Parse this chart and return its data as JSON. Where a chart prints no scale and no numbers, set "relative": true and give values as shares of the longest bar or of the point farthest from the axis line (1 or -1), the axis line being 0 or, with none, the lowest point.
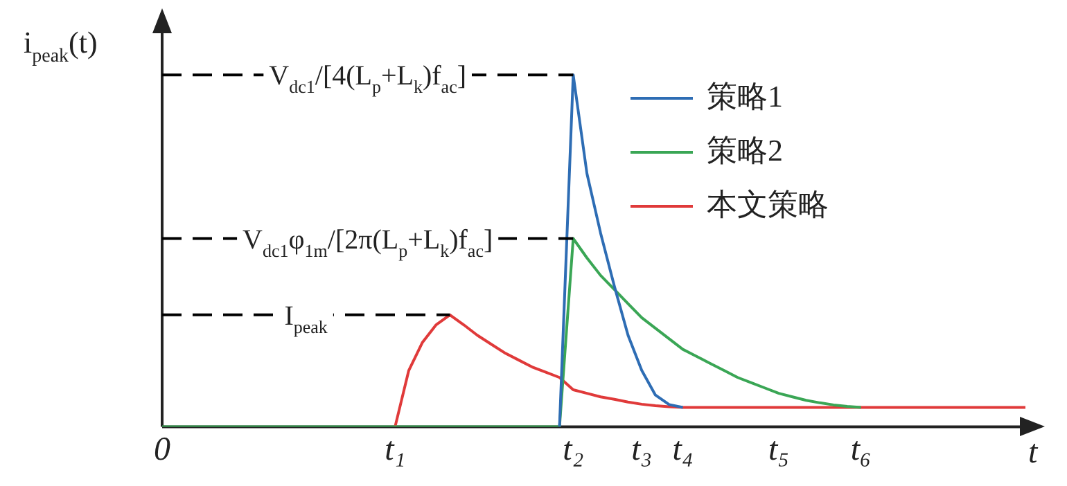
{
  "chart_data": {
    "type": "line",
    "relative": true,
    "xlabel": "t",
    "ylabel": "i$_{peak}$(t)",
    "categories": [
      "0",
      null,
      null,
      null,
      null,
      null,
      null,
      null,
      null,
      null,
      null,
      null,
      null,
      null,
      null,
      null,
      null,
      "t₁",
      null,
      null,
      null,
      null,
      null,
      null,
      null,
      null,
      null,
      null,
      null,
      null,
      "t₂",
      null,
      null,
      null,
      null,
      "t₃",
      null,
      null,
      "t₄",
      null,
      null,
      null,
      null,
      null,
      null,
      "t₅",
      null,
      null,
      null,
      null,
      null,
      "t₆",
      null,
      null,
      null,
      null,
      null,
      null,
      null,
      null,
      null,
      null,
      null,
      null
    ],
    "grid": false,
    "legend": "top right",
    "marker": "none",
    "line_style": "solid",
    "series": [
      {
        "name": "策略1",
        "color": "#2e6db4",
        "values": [
          null,
          null,
          null,
          null,
          null,
          null,
          null,
          null,
          null,
          null,
          null,
          null,
          null,
          null,
          null,
          null,
          null,
          null,
          null,
          null,
          null,
          null,
          null,
          null,
          null,
          null,
          null,
          null,
          null,
          0,
          1,
          0.72,
          0.55,
          0.4,
          0.26,
          0.16,
          0.09,
          0.063,
          0.055,
          null,
          null,
          null,
          null,
          null,
          null,
          null,
          null,
          null,
          null,
          null,
          null,
          null,
          null,
          null,
          null,
          null,
          null,
          null,
          null,
          null,
          null,
          null,
          null,
          null
        ]
      },
      {
        "name": "策略2",
        "color": "#3aa655",
        "values": [
          0,
          0,
          0,
          0,
          0,
          0,
          0,
          0,
          0,
          0,
          0,
          0,
          0,
          0,
          0,
          0,
          0,
          0,
          0,
          0,
          0,
          0,
          0,
          0,
          0,
          0,
          0,
          0,
          0,
          0,
          0.535,
          0.48,
          0.43,
          0.39,
          0.35,
          0.31,
          0.28,
          0.25,
          0.22,
          0.2,
          0.18,
          0.16,
          0.14,
          0.125,
          0.11,
          0.095,
          0.085,
          0.075,
          0.068,
          0.062,
          0.058,
          0.055,
          null,
          null,
          null,
          null,
          null,
          null,
          null,
          null,
          null,
          null,
          null,
          null
        ]
      },
      {
        "name": "本文策略",
        "color": "#e03a3a",
        "values": [
          null,
          null,
          null,
          null,
          null,
          null,
          null,
          null,
          null,
          null,
          null,
          null,
          null,
          null,
          null,
          null,
          null,
          0,
          0.16,
          0.24,
          0.29,
          0.318,
          0.29,
          0.26,
          0.235,
          0.21,
          0.19,
          0.17,
          0.155,
          0.14,
          0.105,
          0.095,
          0.085,
          0.078,
          0.07,
          0.064,
          0.06,
          0.057,
          0.055,
          0.055,
          0.055,
          0.055,
          0.055,
          0.055,
          0.055,
          0.055,
          0.055,
          0.055,
          0.055,
          0.055,
          0.055,
          0.055,
          0.055,
          0.055,
          0.055,
          0.055,
          0.055,
          0.055,
          0.055,
          0.055,
          0.055,
          0.055,
          0.055,
          0.055
        ]
      }
    ],
    "ref_lines": [
      {
        "axis": "y",
        "value": 1,
        "label": "V$_{dc1}$/[4(L$_{p}$+L$_{k}$)f$_{ac}$]",
        "color": "#000000",
        "line_style": "dashed"
      },
      {
        "axis": "y",
        "value": 0.535,
        "label": "V$_{dc1}$φ$_{1m}$/[2π(L$_{p}$+L$_{k}$)f$_{ac}$]",
        "color": "#000000",
        "line_style": "dashed"
      },
      {
        "axis": "y",
        "value": 0.318,
        "label": "I$_{peak}$",
        "color": "#000000",
        "line_style": "dashed"
      }
    ]
  }
}
